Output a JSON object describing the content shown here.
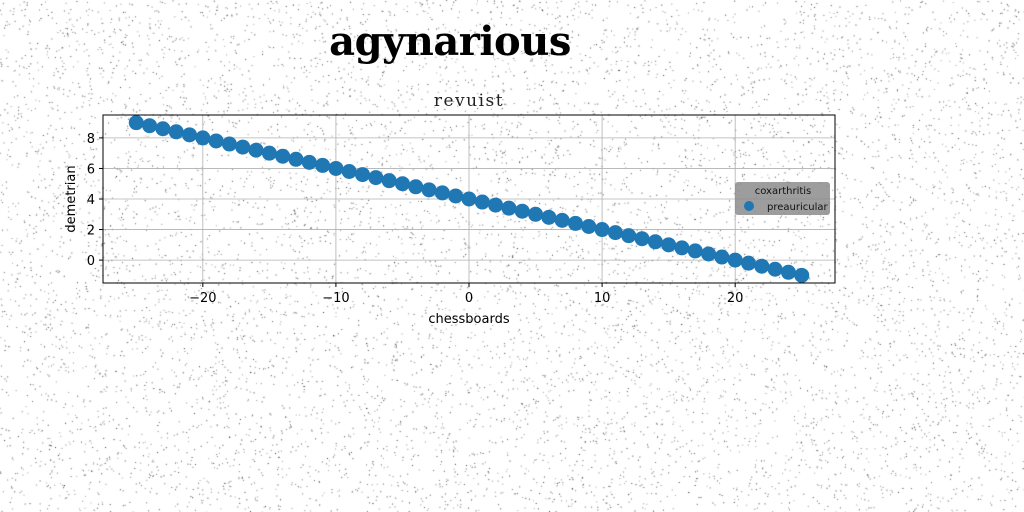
{
  "page_title": "agynarious",
  "chart_data": {
    "type": "scatter",
    "title": "revuist",
    "xlabel": "chessboards",
    "ylabel": "demetrian",
    "xlim": [
      -27.5,
      27.5
    ],
    "ylim": [
      -1.5,
      9.5
    ],
    "xticks": [
      -20,
      -10,
      0,
      10,
      20
    ],
    "yticks": [
      0,
      2,
      4,
      6,
      8
    ],
    "grid": true,
    "legend": {
      "title": "coxarthritis",
      "placement": "center-right"
    },
    "series": [
      {
        "name": "preauricular",
        "color": "#1f77b4",
        "x": [
          -25.0,
          -24.0,
          -23.0,
          -22.0,
          -21.0,
          -20.0,
          -19.0,
          -18.0,
          -17.0,
          -16.0,
          -15.0,
          -14.0,
          -13.0,
          -12.0,
          -11.0,
          -10.0,
          -9.0,
          -8.0,
          -7.0,
          -6.0,
          -5.0,
          -4.0,
          -3.0,
          -2.0,
          -1.0,
          0.0,
          1.0,
          2.0,
          3.0,
          4.0,
          5.0,
          6.0,
          7.0,
          8.0,
          9.0,
          10.0,
          11.0,
          12.0,
          13.0,
          14.0,
          15.0,
          16.0,
          17.0,
          18.0,
          19.0,
          20.0,
          21.0,
          22.0,
          23.0,
          24.0,
          25.0
        ],
        "y": [
          9.0,
          8.8,
          8.6,
          8.4,
          8.2,
          8.0,
          7.8,
          7.6,
          7.4,
          7.2,
          7.0,
          6.8,
          6.6,
          6.4,
          6.2,
          6.0,
          5.8,
          5.6,
          5.4,
          5.2,
          5.0,
          4.8,
          4.6,
          4.4,
          4.2,
          4.0,
          3.8,
          3.6,
          3.4,
          3.2,
          3.0,
          2.8,
          2.6,
          2.4,
          2.2,
          2.0,
          1.8,
          1.6,
          1.4,
          1.2,
          1.0,
          0.8,
          0.6,
          0.4,
          0.2,
          0.0,
          -0.2,
          -0.4,
          -0.6,
          -0.8,
          -1.0
        ]
      }
    ]
  }
}
